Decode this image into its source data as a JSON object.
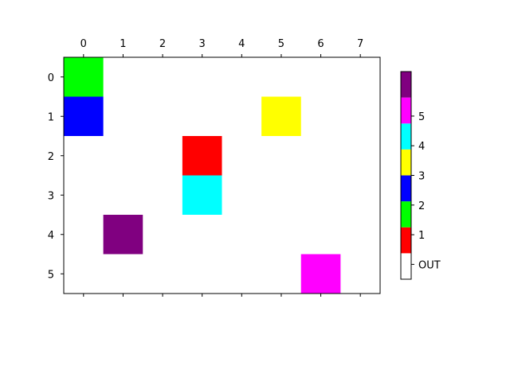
{
  "chart_data": {
    "type": "heatmap",
    "x_ticks": [
      "0",
      "1",
      "2",
      "3",
      "4",
      "5",
      "6",
      "7"
    ],
    "y_ticks": [
      "0",
      "1",
      "2",
      "3",
      "4",
      "5"
    ],
    "cells": [
      {
        "row": 0,
        "col": 0,
        "color": "#00ff00"
      },
      {
        "row": 1,
        "col": 0,
        "color": "#0000ff"
      },
      {
        "row": 1,
        "col": 5,
        "color": "#ffff00"
      },
      {
        "row": 2,
        "col": 3,
        "color": "#ff0000"
      },
      {
        "row": 3,
        "col": 3,
        "color": "#00ffff"
      },
      {
        "row": 4,
        "col": 1,
        "color": "#800080"
      },
      {
        "row": 5,
        "col": 6,
        "color": "#ff00ff"
      }
    ],
    "background_color": "#ffffff",
    "colorbar": {
      "colors_bottom_to_top": [
        "#ffffff",
        "#ff0000",
        "#00ff00",
        "#0000ff",
        "#ffff00",
        "#00ffff",
        "#ff00ff",
        "#800080"
      ],
      "levels_bottom_to_top": [
        0,
        0,
        1,
        2,
        3,
        4,
        5,
        6,
        7
      ],
      "tick_levels": [
        0.5,
        1.5,
        2.5,
        3.5,
        4.5,
        5.5
      ],
      "labels": [
        "OUT",
        "1",
        "2",
        "3",
        "4",
        "5"
      ]
    }
  }
}
